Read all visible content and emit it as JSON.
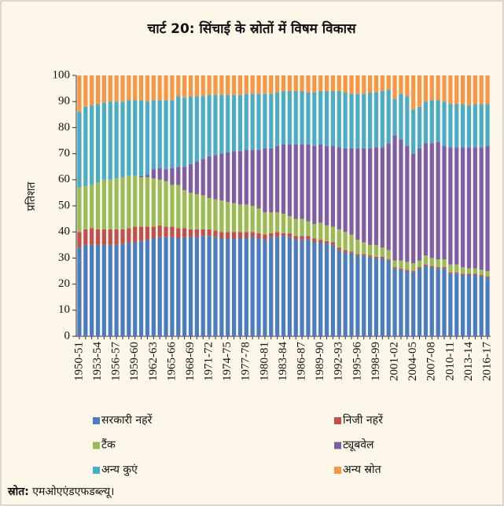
{
  "chart_data": {
    "type": "stacked_bar",
    "title": "चार्ट 20: सिंचाई के स्रोतों में विषम विकास",
    "ylabel": "प्रतिशत",
    "source_label": "स्रोत:",
    "source": "एमओएएंडएफडब्ल्यू।",
    "categories": [
      "1950-51",
      null,
      null,
      "1953-54",
      null,
      null,
      "1956-57",
      null,
      null,
      "1959-60",
      null,
      null,
      "1962-63",
      null,
      null,
      "1965-66",
      null,
      null,
      "1968-69",
      null,
      null,
      "1971-72",
      null,
      null,
      "1974-75",
      null,
      null,
      "1977-78",
      null,
      null,
      "1980-81",
      null,
      null,
      "1983-84",
      null,
      null,
      "1986-87",
      null,
      null,
      "1989-90",
      null,
      null,
      "1992-93",
      null,
      null,
      "1995-96",
      null,
      null,
      "1998-99",
      null,
      null,
      "2001-02",
      null,
      null,
      "2004-05",
      null,
      null,
      "2007-08",
      null,
      null,
      "2010-11",
      null,
      null,
      "2013-14",
      null,
      null,
      "2016-17"
    ],
    "ylim": [
      0,
      100
    ],
    "yticks": [
      0,
      10,
      20,
      30,
      40,
      50,
      60,
      70,
      80,
      90,
      100
    ],
    "series": [
      {
        "name": "सरकारी नहरें",
        "color": "#4a7cc0",
        "values": [
          34,
          35,
          35,
          35,
          35,
          35,
          35,
          35.5,
          36,
          36,
          36.5,
          37,
          37.5,
          38,
          38,
          38,
          37.5,
          38,
          38,
          38,
          38.5,
          38.5,
          38,
          37.5,
          37.5,
          37.5,
          37.5,
          37.5,
          38,
          37.5,
          37,
          38,
          38,
          38.5,
          38,
          37,
          37,
          37,
          36,
          36,
          35.5,
          35,
          33,
          32,
          32,
          31,
          31,
          30.5,
          30,
          30,
          29,
          26,
          25.5,
          25,
          24.5,
          26,
          27,
          26.5,
          26,
          26,
          24,
          24,
          23.5,
          23.5,
          23.5,
          23,
          22.5
        ]
      },
      {
        "name": "निजी नहरें",
        "color": "#c0504d",
        "values": [
          6,
          6,
          6.5,
          6,
          6,
          6,
          6,
          5.5,
          5.5,
          6,
          5.5,
          5,
          4.5,
          4.5,
          4,
          4,
          4,
          3.5,
          3,
          3,
          2.5,
          2.5,
          2.5,
          2.5,
          2.5,
          2.5,
          2.5,
          2.5,
          2,
          2,
          2,
          1.5,
          2,
          1,
          1.5,
          1.5,
          1.5,
          1.5,
          1.5,
          1,
          1,
          1,
          1,
          1,
          0.5,
          0.5,
          0.5,
          0.5,
          0.5,
          0.5,
          0.5,
          0.5,
          0.5,
          0.5,
          0.5,
          0.5,
          0.5,
          0.5,
          0.5,
          0.5,
          0.5,
          0.5,
          0.5,
          0.5,
          0.5,
          0.5,
          0.5
        ]
      },
      {
        "name": "टैंक",
        "color": "#9bbb59",
        "values": [
          17,
          16.5,
          16.5,
          18,
          19,
          19,
          19.5,
          20,
          20,
          19.5,
          19,
          19,
          18.5,
          17.5,
          17.5,
          16,
          16.5,
          14.5,
          14,
          13.5,
          13,
          12,
          12,
          12,
          11.5,
          11,
          10.5,
          10.5,
          10,
          9.5,
          8.5,
          8,
          7.5,
          7.5,
          6.5,
          6.5,
          6.5,
          5.5,
          5.5,
          6.5,
          6,
          6,
          7,
          7,
          6.5,
          5.5,
          4.5,
          4,
          4.5,
          3.5,
          3.5,
          2.5,
          3,
          3,
          3,
          2.5,
          3.5,
          3,
          3,
          3,
          3,
          3,
          2.5,
          2,
          2,
          2,
          2
        ]
      },
      {
        "name": "ट्यूबवेल",
        "color": "#7e5fa6",
        "values": [
          0,
          0,
          0,
          0,
          0,
          0,
          0,
          0,
          0,
          0,
          0.5,
          1,
          3.5,
          4.5,
          4.5,
          6.5,
          7,
          9,
          11,
          12.5,
          14,
          16,
          17,
          18,
          19,
          20,
          20.5,
          21,
          21.5,
          22.5,
          24.5,
          24.5,
          25.5,
          26.5,
          27.5,
          28.5,
          28.5,
          29.5,
          30,
          30,
          30.5,
          31,
          31.5,
          32,
          33,
          35,
          36,
          37,
          37.5,
          38.5,
          41,
          48,
          46.5,
          44.5,
          42,
          43,
          43,
          44,
          45,
          43.5,
          45,
          45,
          46,
          46.5,
          46.5,
          47,
          48
        ]
      },
      {
        "name": "अन्य कुएं",
        "color": "#4bacc6",
        "values": [
          29,
          30.5,
          30.5,
          30,
          29.5,
          30,
          29.5,
          29,
          29,
          29,
          29,
          28,
          26.5,
          26,
          26.5,
          26,
          27,
          26.5,
          26,
          25,
          24,
          23.5,
          23,
          22.5,
          22,
          21.5,
          21.5,
          21.5,
          21.5,
          21.5,
          21,
          21,
          20.5,
          20.5,
          20.5,
          20.5,
          20.5,
          20,
          20.5,
          20.5,
          21,
          21,
          21.5,
          21.5,
          21,
          21,
          21,
          21.5,
          21,
          21.5,
          20.5,
          14,
          17.5,
          19,
          17,
          16,
          16,
          16.5,
          16,
          17,
          16.5,
          16.5,
          16.5,
          16,
          16.5,
          16.5,
          16
        ]
      },
      {
        "name": "अन्य स्रोत",
        "color": "#f79646",
        "values": [
          14,
          12,
          11.5,
          11,
          10.5,
          10,
          10,
          10,
          9.5,
          9.5,
          9.5,
          10,
          9.5,
          9.5,
          9.5,
          9.5,
          8,
          8.5,
          8,
          8,
          8,
          7.5,
          7.5,
          7.5,
          7.5,
          7.5,
          7.5,
          7,
          7,
          7,
          7,
          7,
          6.5,
          6,
          6,
          6,
          6,
          6.5,
          6.5,
          6,
          6,
          6,
          6,
          6.5,
          7,
          7,
          7,
          6.5,
          6.5,
          6,
          5.5,
          9,
          7,
          8,
          13,
          12,
          10,
          9.5,
          9.5,
          10,
          11,
          11,
          11,
          11.5,
          11,
          11,
          11
        ]
      }
    ]
  }
}
